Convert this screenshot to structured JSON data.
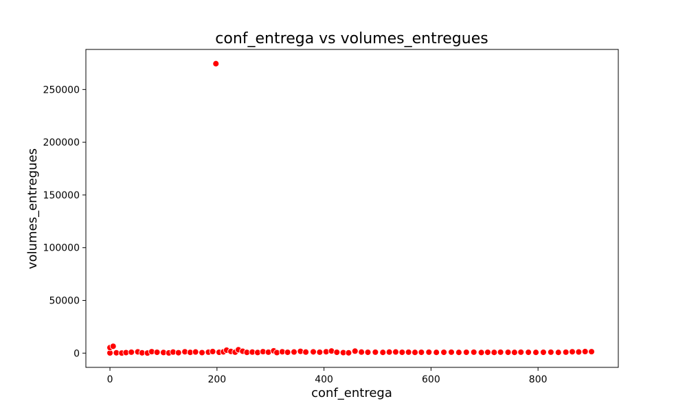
{
  "chart_data": {
    "type": "scatter",
    "title": "conf_entrega vs volumes_entregues",
    "xlabel": "conf_entrega",
    "ylabel": "volumes_entregues",
    "xlim": [
      -45,
      950
    ],
    "ylim": [
      -13500,
      288000
    ],
    "xticks": [
      0,
      200,
      400,
      600,
      800
    ],
    "yticks": [
      0,
      50000,
      100000,
      150000,
      200000,
      250000
    ],
    "grid": false,
    "marker_color": "#ff0000",
    "marker_edge": "#ffffff",
    "points": [
      {
        "x": 0,
        "y": 200
      },
      {
        "x": 0,
        "y": 5200
      },
      {
        "x": 6,
        "y": 6500
      },
      {
        "x": 12,
        "y": 300
      },
      {
        "x": 22,
        "y": 100
      },
      {
        "x": 30,
        "y": 500
      },
      {
        "x": 40,
        "y": 900
      },
      {
        "x": 52,
        "y": 1200
      },
      {
        "x": 60,
        "y": 300
      },
      {
        "x": 70,
        "y": 100
      },
      {
        "x": 78,
        "y": 1400
      },
      {
        "x": 88,
        "y": 800
      },
      {
        "x": 100,
        "y": 600
      },
      {
        "x": 110,
        "y": 200
      },
      {
        "x": 118,
        "y": 1000
      },
      {
        "x": 128,
        "y": 400
      },
      {
        "x": 140,
        "y": 1300
      },
      {
        "x": 150,
        "y": 700
      },
      {
        "x": 160,
        "y": 1100
      },
      {
        "x": 172,
        "y": 500
      },
      {
        "x": 184,
        "y": 900
      },
      {
        "x": 192,
        "y": 1500
      },
      {
        "x": 198,
        "y": 274500
      },
      {
        "x": 204,
        "y": 800
      },
      {
        "x": 212,
        "y": 1200
      },
      {
        "x": 218,
        "y": 2800
      },
      {
        "x": 226,
        "y": 1600
      },
      {
        "x": 234,
        "y": 900
      },
      {
        "x": 240,
        "y": 3200
      },
      {
        "x": 248,
        "y": 1800
      },
      {
        "x": 256,
        "y": 700
      },
      {
        "x": 266,
        "y": 1000
      },
      {
        "x": 276,
        "y": 600
      },
      {
        "x": 286,
        "y": 1400
      },
      {
        "x": 296,
        "y": 900
      },
      {
        "x": 306,
        "y": 2200
      },
      {
        "x": 312,
        "y": 500
      },
      {
        "x": 322,
        "y": 1300
      },
      {
        "x": 332,
        "y": 800
      },
      {
        "x": 344,
        "y": 1100
      },
      {
        "x": 356,
        "y": 1700
      },
      {
        "x": 366,
        "y": 1000
      },
      {
        "x": 380,
        "y": 1200
      },
      {
        "x": 392,
        "y": 900
      },
      {
        "x": 404,
        "y": 1300
      },
      {
        "x": 414,
        "y": 2000
      },
      {
        "x": 424,
        "y": 800
      },
      {
        "x": 436,
        "y": 500
      },
      {
        "x": 446,
        "y": 300
      },
      {
        "x": 458,
        "y": 1900
      },
      {
        "x": 470,
        "y": 1000
      },
      {
        "x": 482,
        "y": 800
      },
      {
        "x": 496,
        "y": 900
      },
      {
        "x": 510,
        "y": 700
      },
      {
        "x": 522,
        "y": 1000
      },
      {
        "x": 534,
        "y": 1100
      },
      {
        "x": 546,
        "y": 800
      },
      {
        "x": 558,
        "y": 900
      },
      {
        "x": 570,
        "y": 700
      },
      {
        "x": 582,
        "y": 800
      },
      {
        "x": 596,
        "y": 900
      },
      {
        "x": 610,
        "y": 700
      },
      {
        "x": 624,
        "y": 800
      },
      {
        "x": 638,
        "y": 900
      },
      {
        "x": 652,
        "y": 700
      },
      {
        "x": 666,
        "y": 800
      },
      {
        "x": 680,
        "y": 900
      },
      {
        "x": 694,
        "y": 600
      },
      {
        "x": 706,
        "y": 800
      },
      {
        "x": 718,
        "y": 700
      },
      {
        "x": 730,
        "y": 900
      },
      {
        "x": 744,
        "y": 800
      },
      {
        "x": 756,
        "y": 700
      },
      {
        "x": 768,
        "y": 900
      },
      {
        "x": 782,
        "y": 800
      },
      {
        "x": 796,
        "y": 700
      },
      {
        "x": 810,
        "y": 800
      },
      {
        "x": 824,
        "y": 900
      },
      {
        "x": 838,
        "y": 700
      },
      {
        "x": 852,
        "y": 900
      },
      {
        "x": 864,
        "y": 1300
      },
      {
        "x": 876,
        "y": 1100
      },
      {
        "x": 888,
        "y": 1500
      },
      {
        "x": 900,
        "y": 1400
      }
    ]
  }
}
